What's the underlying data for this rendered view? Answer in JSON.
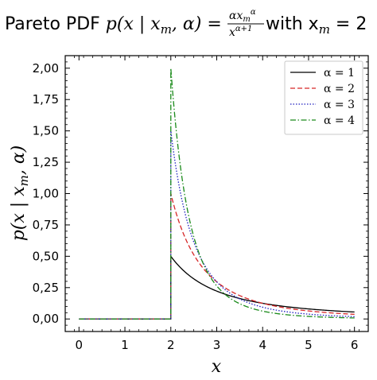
{
  "chart_data": {
    "type": "line",
    "title": {
      "prefix": "Pareto PDF ",
      "lhs": "p(x | x",
      "lhs_sub": "m",
      "lhs_end": ", α) =",
      "frac_num": "αx",
      "frac_num_sub": "m",
      "frac_num_sup": "α",
      "frac_den": "x",
      "frac_den_sup": "α+1",
      "suffix": " with x",
      "suffix_sub": "m",
      "suffix_end": " = 2"
    },
    "xlabel": "x",
    "ylabel": {
      "main": "p(x | x",
      "sub": "m",
      "end": ", α)"
    },
    "xlim": [
      -0.3,
      6.3
    ],
    "ylim": [
      -0.1,
      2.1
    ],
    "xticks": [
      0,
      1,
      2,
      3,
      4,
      5,
      6
    ],
    "xtick_labels": [
      "0",
      "1",
      "2",
      "3",
      "4",
      "5",
      "6"
    ],
    "yticks": [
      0,
      0.25,
      0.5,
      0.75,
      1.0,
      1.25,
      1.5,
      1.75,
      2.0
    ],
    "ytick_labels": [
      "0,00",
      "0,25",
      "0,50",
      "0,75",
      "1,00",
      "1,25",
      "1,50",
      "1,75",
      "2,00"
    ],
    "grid": false,
    "legend_position": "top-right",
    "x_m": 2,
    "series": [
      {
        "name": "α = 1",
        "alpha": 1,
        "color": "#000000",
        "dash": "",
        "x": [
          0,
          2,
          2,
          2.5,
          3,
          3.5,
          4,
          4.5,
          5,
          5.5,
          6
        ],
        "y": [
          0,
          0,
          0.5,
          0.32,
          0.222,
          0.163,
          0.125,
          0.099,
          0.08,
          0.066,
          0.056
        ]
      },
      {
        "name": "α = 2",
        "alpha": 2,
        "color": "#d62728",
        "dash": "6,3",
        "x": [
          0,
          2,
          2,
          2.5,
          3,
          3.5,
          4,
          4.5,
          5,
          5.5,
          6
        ],
        "y": [
          0,
          0,
          1.0,
          0.512,
          0.296,
          0.187,
          0.125,
          0.088,
          0.064,
          0.048,
          0.037
        ]
      },
      {
        "name": "α = 3",
        "alpha": 3,
        "color": "#1f1fbf",
        "dash": "1.5,2",
        "x": [
          0,
          2,
          2,
          2.5,
          3,
          3.5,
          4,
          4.5,
          5,
          5.5,
          6
        ],
        "y": [
          0,
          0,
          1.5,
          0.614,
          0.296,
          0.16,
          0.094,
          0.059,
          0.038,
          0.026,
          0.019
        ]
      },
      {
        "name": "α = 4",
        "alpha": 4,
        "color": "#1a8a1a",
        "dash": "7,2.5,1.5,2.5",
        "x": [
          0,
          2,
          2,
          2.5,
          3,
          3.5,
          4,
          4.5,
          5,
          5.5,
          6
        ],
        "y": [
          0,
          0,
          2.0,
          0.655,
          0.263,
          0.122,
          0.063,
          0.035,
          0.02,
          0.013,
          0.008
        ]
      }
    ]
  }
}
